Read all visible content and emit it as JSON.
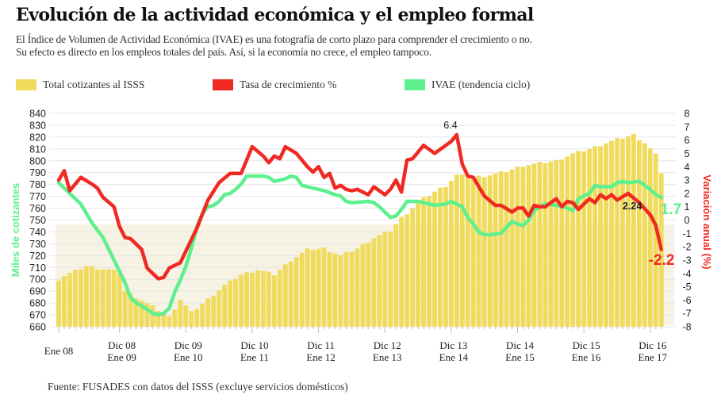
{
  "header": {
    "title": "Evolución de la actividad económica y  el empleo formal",
    "subtitle_line1": "El Índice de Volumen de Actividad Económica (IVAE) es una fotografía de corto plazo para comprender el crecimiento o no.",
    "subtitle_line2": "Su efecto es directo en los empleos totales del país.  Así, si la economía no  crece, el empleo tampoco."
  },
  "legend": {
    "total": "Total cotizantes al ISSS",
    "tasa": "Tasa de crecimiento  %",
    "ivae": "IVAE  (tendencia ciclo)"
  },
  "colors": {
    "bars": "#f0db5c",
    "tasa": "#f02a22",
    "ivae": "#5eef8e",
    "left_axis_title": "#5eef8e",
    "right_axis_title": "#f02a22"
  },
  "source": "Fuente: FUSADES con datos del ISSS (excluye servicios domésticos)",
  "chart_data": {
    "type": "bar+line",
    "left_axis": {
      "label": "Miles de cotizantes",
      "min": 660,
      "max": 840,
      "ticks": [
        "840",
        "830",
        "820",
        "810",
        "800",
        "790",
        "780",
        "770",
        "760",
        "750",
        "740",
        "730",
        "720",
        "710",
        "700",
        "690",
        "680",
        "670",
        "660"
      ]
    },
    "right_axis": {
      "label": "Variación anual (%)",
      "min": -8,
      "max": 8,
      "ticks": [
        "8",
        "7",
        "6",
        "5",
        "4",
        "3",
        "2",
        "1",
        "0",
        "-1",
        "-2",
        "-3",
        "-4",
        "-5",
        "-6",
        "-7",
        "-8"
      ]
    },
    "x_labels": [
      {
        "month": 0,
        "line1": "Ene 08",
        "line2": ""
      },
      {
        "month": 11,
        "line1": "Dic 08",
        "line2": "Ene 09"
      },
      {
        "month": 23,
        "line1": "Dic 09",
        "line2": "Ene 10"
      },
      {
        "month": 35,
        "line1": "Dic 10",
        "line2": "Ene 11"
      },
      {
        "month": 47,
        "line1": "Dic 11",
        "line2": "Ene 12"
      },
      {
        "month": 59,
        "line1": "Dic 12",
        "line2": "Ene 13"
      },
      {
        "month": 71,
        "line1": "Dic 13",
        "line2": "Ene 14"
      },
      {
        "month": 83,
        "line1": "Dic 14",
        "line2": "Ene 15"
      },
      {
        "month": 95,
        "line1": "Dic 15",
        "line2": "Ene 16"
      },
      {
        "month": 107,
        "line1": "Dic 16",
        "line2": "Ene 17"
      }
    ],
    "annotations": {
      "peak_tasa": "6.4",
      "ivae_label": "2.24",
      "ivae_end": "1.7",
      "tasa_end": "-2.2"
    },
    "bar_anchors": [
      [
        0,
        700
      ],
      [
        1,
        703
      ],
      [
        5,
        711
      ],
      [
        9,
        708
      ],
      [
        11,
        706
      ],
      [
        12,
        690
      ],
      [
        17,
        677
      ],
      [
        20,
        668
      ],
      [
        22,
        683
      ],
      [
        24,
        672
      ],
      [
        27,
        683
      ],
      [
        30,
        695
      ],
      [
        33,
        704
      ],
      [
        36,
        708
      ],
      [
        39,
        704
      ],
      [
        42,
        716
      ],
      [
        45,
        725
      ],
      [
        48,
        726
      ],
      [
        51,
        720
      ],
      [
        54,
        726
      ],
      [
        57,
        735
      ],
      [
        60,
        741
      ],
      [
        62,
        752
      ],
      [
        64,
        760
      ],
      [
        66,
        768
      ],
      [
        68,
        774
      ],
      [
        70,
        779
      ],
      [
        72,
        788
      ],
      [
        75,
        786
      ],
      [
        78,
        788
      ],
      [
        81,
        791
      ],
      [
        84,
        796
      ],
      [
        87,
        798
      ],
      [
        90,
        800
      ],
      [
        93,
        806
      ],
      [
        96,
        810
      ],
      [
        99,
        815
      ],
      [
        101,
        818
      ],
      [
        104,
        822
      ],
      [
        106,
        815
      ],
      [
        108,
        805
      ],
      [
        109,
        790
      ]
    ],
    "tasa_anchors": [
      [
        0,
        3.0
      ],
      [
        1,
        3.7
      ],
      [
        2,
        2.2
      ],
      [
        4,
        3.2
      ],
      [
        6,
        2.7
      ],
      [
        7,
        2.4
      ],
      [
        8,
        1.7
      ],
      [
        10,
        1.0
      ],
      [
        11,
        -0.5
      ],
      [
        12,
        -1.3
      ],
      [
        13,
        -1.4
      ],
      [
        15,
        -2.2
      ],
      [
        16,
        -3.6
      ],
      [
        18,
        -4.4
      ],
      [
        19,
        -4.3
      ],
      [
        20,
        -3.6
      ],
      [
        22,
        -3.2
      ],
      [
        25,
        -0.6
      ],
      [
        27,
        1.5
      ],
      [
        29,
        2.8
      ],
      [
        31,
        3.5
      ],
      [
        33,
        3.5
      ],
      [
        35,
        5.5
      ],
      [
        37,
        4.8
      ],
      [
        38,
        4.3
      ],
      [
        39,
        4.8
      ],
      [
        40,
        4.6
      ],
      [
        41,
        5.5
      ],
      [
        43,
        5.0
      ],
      [
        45,
        4.0
      ],
      [
        46,
        3.6
      ],
      [
        47,
        4.0
      ],
      [
        48,
        3.2
      ],
      [
        49,
        3.5
      ],
      [
        50,
        2.4
      ],
      [
        51,
        2.6
      ],
      [
        52,
        2.3
      ],
      [
        53,
        2.2
      ],
      [
        54,
        2.3
      ],
      [
        56,
        1.9
      ],
      [
        57,
        2.5
      ],
      [
        59,
        1.9
      ],
      [
        60,
        2.3
      ],
      [
        61,
        3.0
      ],
      [
        62,
        2.1
      ],
      [
        63,
        4.5
      ],
      [
        64,
        4.6
      ],
      [
        66,
        5.6
      ],
      [
        68,
        5.0
      ],
      [
        69,
        5.3
      ],
      [
        71,
        5.9
      ],
      [
        72,
        6.4
      ],
      [
        73,
        4.2
      ],
      [
        74,
        3.3
      ],
      [
        75,
        3.2
      ],
      [
        76,
        2.5
      ],
      [
        77,
        1.8
      ],
      [
        79,
        1.1
      ],
      [
        80,
        1.1
      ],
      [
        82,
        0.6
      ],
      [
        83,
        0.9
      ],
      [
        84,
        0.9
      ],
      [
        85,
        0.3
      ],
      [
        86,
        1.1
      ],
      [
        87,
        1.0
      ],
      [
        88,
        1.0
      ],
      [
        90,
        1.6
      ],
      [
        91,
        1.0
      ],
      [
        92,
        1.4
      ],
      [
        93,
        1.3
      ],
      [
        94,
        0.8
      ],
      [
        96,
        1.6
      ],
      [
        97,
        1.3
      ],
      [
        98,
        1.9
      ],
      [
        99,
        1.6
      ],
      [
        100,
        1.9
      ],
      [
        101,
        1.5
      ],
      [
        103,
        2.0
      ],
      [
        105,
        1.3
      ],
      [
        107,
        0.4
      ],
      [
        108,
        -0.4
      ],
      [
        109,
        -2.2
      ]
    ],
    "ivae_anchors": [
      [
        0,
        2.8
      ],
      [
        2,
        2.0
      ],
      [
        4,
        1.2
      ],
      [
        6,
        -0.2
      ],
      [
        8,
        -1.3
      ],
      [
        10,
        -3.0
      ],
      [
        12,
        -4.7
      ],
      [
        13,
        -5.8
      ],
      [
        14,
        -6.2
      ],
      [
        16,
        -6.7
      ],
      [
        17,
        -7.0
      ],
      [
        18,
        -7.1
      ],
      [
        19,
        -7.0
      ],
      [
        20,
        -6.6
      ],
      [
        21,
        -5.4
      ],
      [
        22,
        -4.5
      ],
      [
        23,
        -3.5
      ],
      [
        24,
        -2.1
      ],
      [
        25,
        -0.5
      ],
      [
        26,
        0.5
      ],
      [
        27,
        1.0
      ],
      [
        28,
        1.1
      ],
      [
        29,
        1.4
      ],
      [
        30,
        1.9
      ],
      [
        31,
        2.0
      ],
      [
        32,
        2.3
      ],
      [
        33,
        2.7
      ],
      [
        34,
        3.3
      ],
      [
        36,
        3.3
      ],
      [
        37,
        3.3
      ],
      [
        38,
        3.2
      ],
      [
        39,
        2.9
      ],
      [
        40,
        3.0
      ],
      [
        41,
        3.1
      ],
      [
        42,
        3.3
      ],
      [
        43,
        3.2
      ],
      [
        44,
        2.6
      ],
      [
        46,
        2.4
      ],
      [
        47,
        2.3
      ],
      [
        48,
        2.2
      ],
      [
        50,
        1.9
      ],
      [
        51,
        1.8
      ],
      [
        52,
        1.4
      ],
      [
        53,
        1.3
      ],
      [
        56,
        1.4
      ],
      [
        57,
        1.3
      ],
      [
        58,
        1.0
      ],
      [
        59,
        0.6
      ],
      [
        60,
        0.2
      ],
      [
        61,
        0.3
      ],
      [
        62,
        0.8
      ],
      [
        63,
        1.4
      ],
      [
        65,
        1.4
      ],
      [
        68,
        1.1
      ],
      [
        70,
        1.2
      ],
      [
        71,
        1.4
      ],
      [
        72,
        1.2
      ],
      [
        73,
        1.0
      ],
      [
        74,
        0.2
      ],
      [
        75,
        -0.3
      ],
      [
        76,
        -0.9
      ],
      [
        77,
        -1.1
      ],
      [
        78,
        -1.1
      ],
      [
        80,
        -1.0
      ],
      [
        82,
        -0.1
      ],
      [
        83,
        -0.3
      ],
      [
        84,
        -0.4
      ],
      [
        85,
        0.0
      ],
      [
        86,
        0.7
      ],
      [
        87,
        1.0
      ],
      [
        88,
        1.2
      ],
      [
        90,
        1.1
      ],
      [
        91,
        1.0
      ],
      [
        92,
        0.9
      ],
      [
        93,
        0.7
      ],
      [
        94,
        1.6
      ],
      [
        95,
        1.8
      ],
      [
        96,
        2.0
      ],
      [
        97,
        2.6
      ],
      [
        98,
        2.5
      ],
      [
        100,
        2.5
      ],
      [
        101,
        2.8
      ],
      [
        102,
        2.9
      ],
      [
        103,
        2.8
      ],
      [
        105,
        2.9
      ],
      [
        106,
        2.6
      ],
      [
        107,
        2.3
      ],
      [
        108,
        1.9
      ],
      [
        109,
        1.7
      ]
    ]
  }
}
